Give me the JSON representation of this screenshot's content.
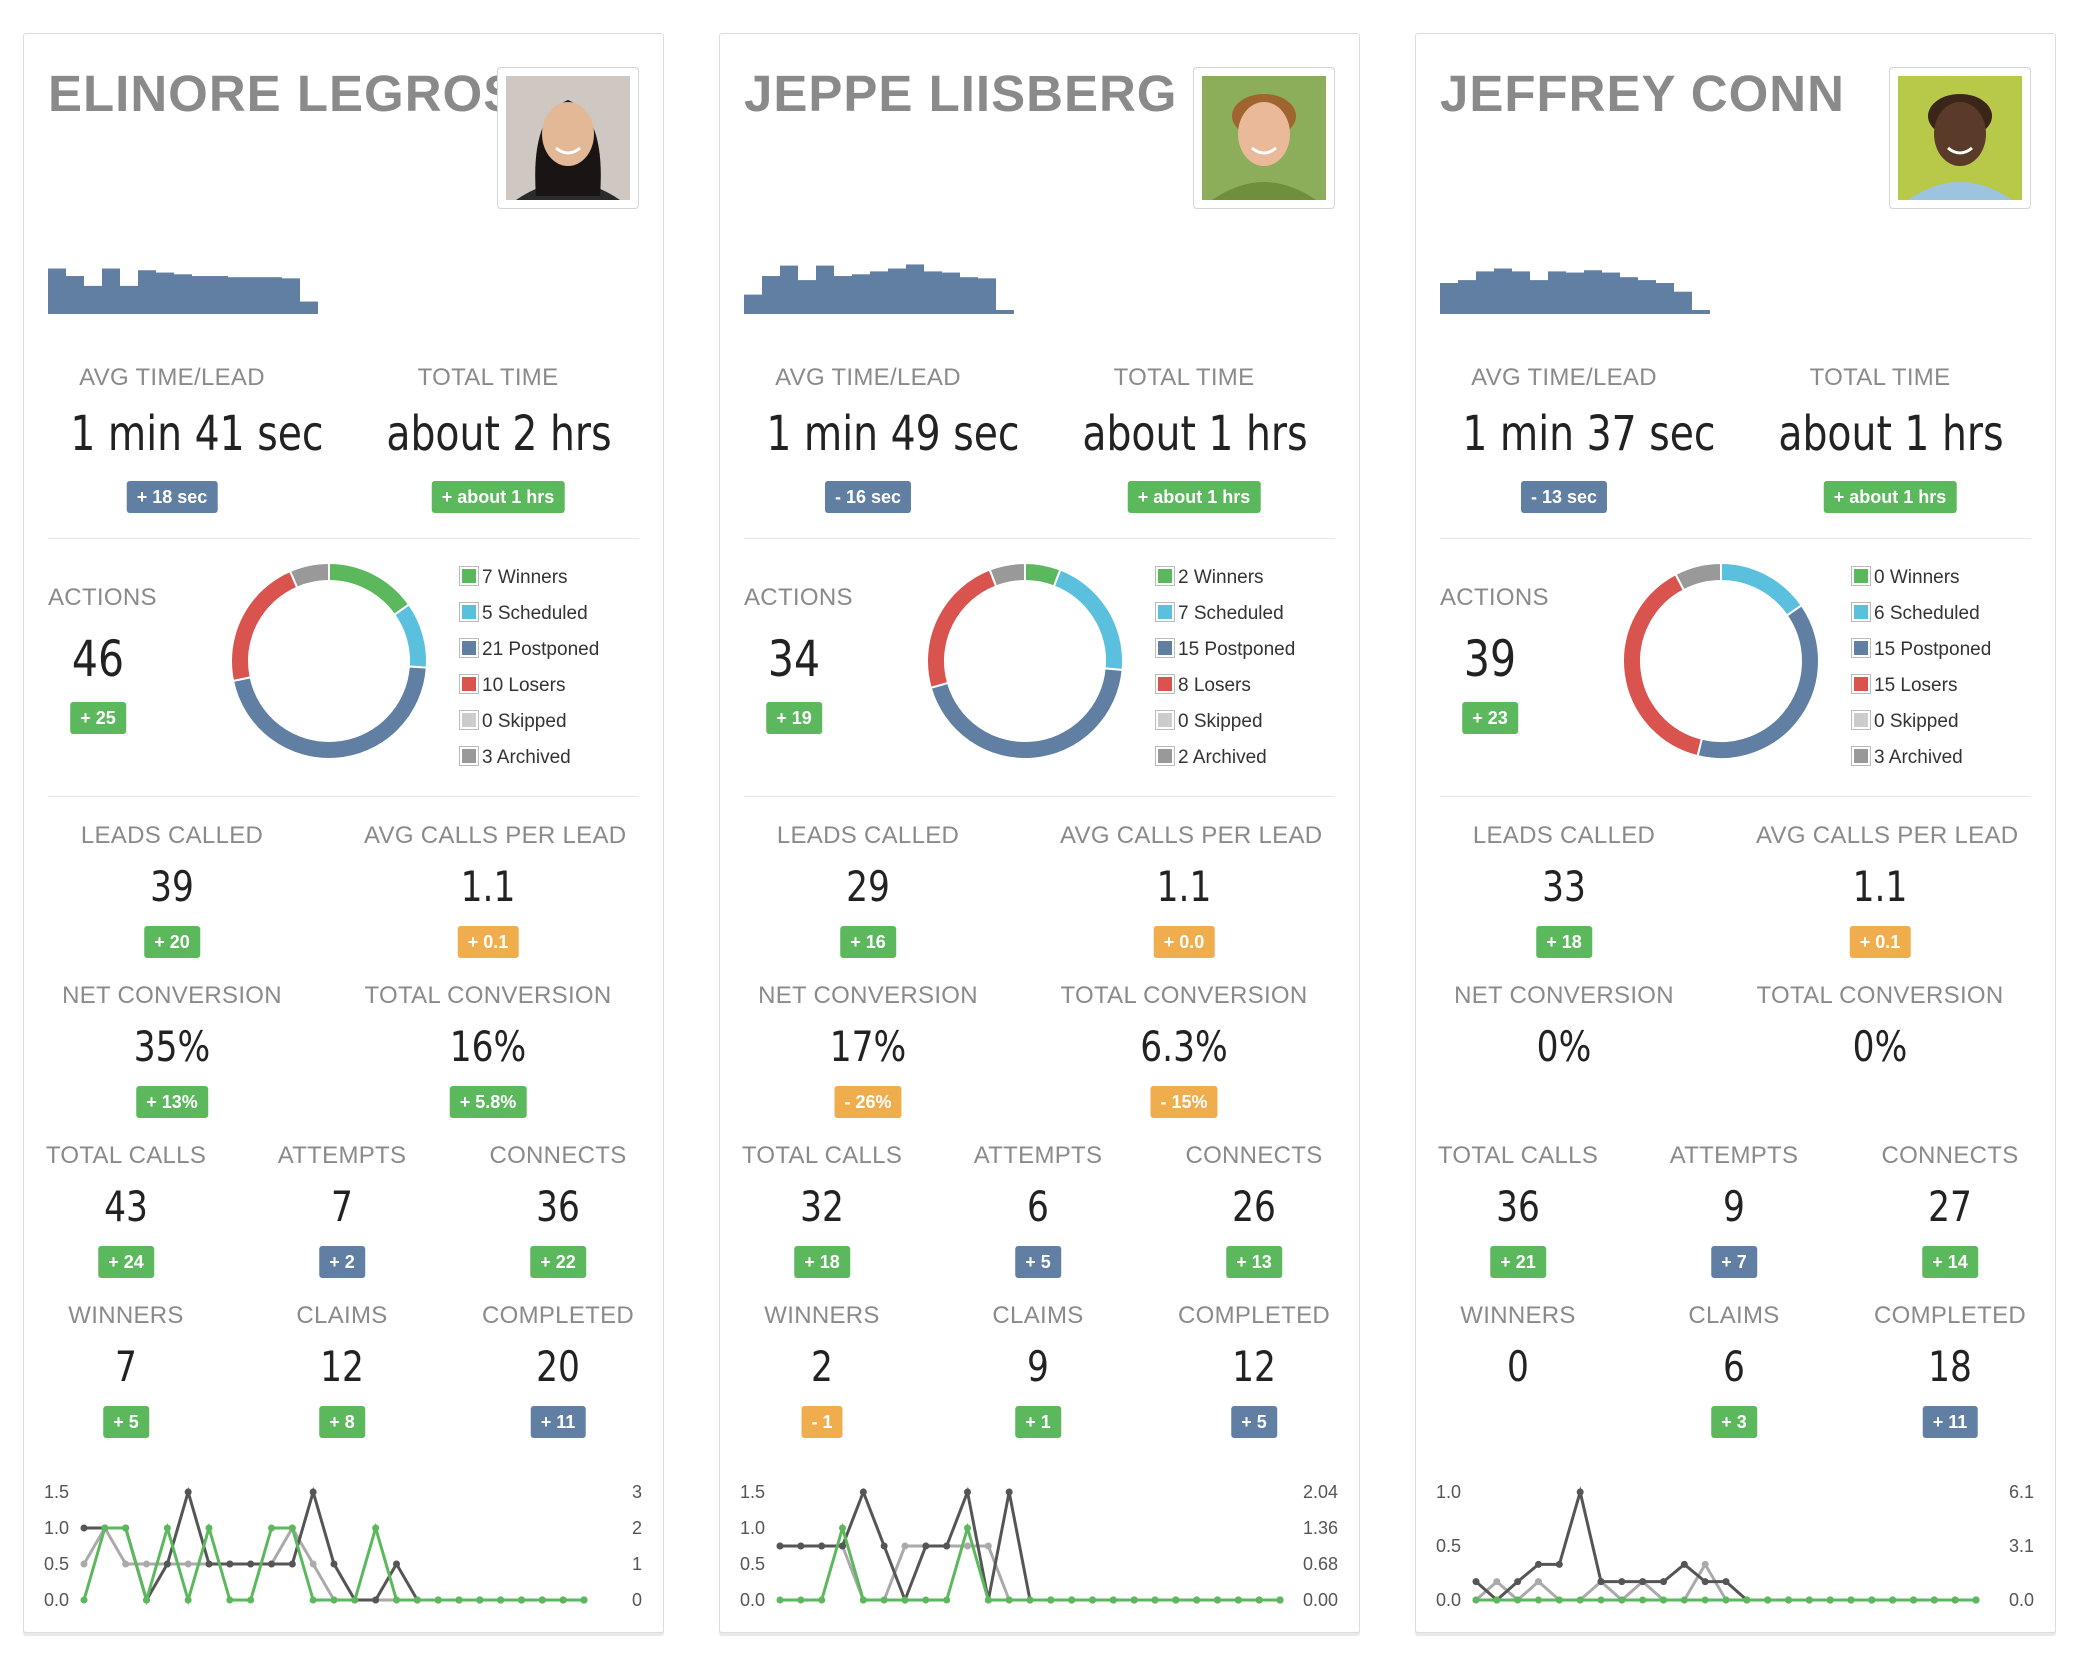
{
  "colors": {
    "winners": "#5cb85c",
    "scheduled": "#5bc0de",
    "postponed": "#607fa3",
    "losers": "#d9534f",
    "skipped": "#cccccc",
    "archived": "#999999",
    "sparkbar": "#607fa3"
  },
  "labels": {
    "avg_time": "AVG TIME/LEAD",
    "total_time": "TOTAL TIME",
    "actions": "ACTIONS",
    "leads_called": "LEADS CALLED",
    "avg_calls": "AVG CALLS PER LEAD",
    "net_conv": "NET CONVERSION",
    "total_conv": "TOTAL CONVERSION",
    "total_calls": "TOTAL CALLS",
    "attempts": "ATTEMPTS",
    "connects": "CONNECTS",
    "winners": "WINNERS",
    "claims": "CLAIMS",
    "completed": "COMPLETED"
  },
  "cards": [
    {
      "name": "ELINORE LEGROS",
      "avatar": "avatar-photo-woman",
      "spark": [
        0.75,
        0.62,
        0.45,
        0.75,
        0.45,
        0.72,
        0.68,
        0.65,
        0.62,
        0.62,
        0.6,
        0.6,
        0.6,
        0.58,
        0.18
      ],
      "avg_time": {
        "value": "1 min 41 sec",
        "delta": "+ 18 sec",
        "tone": "blue"
      },
      "total_time": {
        "value": "about 2 hrs",
        "delta": "+ about 1 hrs",
        "tone": "green"
      },
      "actions": {
        "value": "46",
        "delta": "+ 25",
        "tone": "green"
      },
      "legend": [
        "7 Winners",
        "5 Scheduled",
        "21 Postponed",
        "10 Losers",
        "0 Skipped",
        "3 Archived"
      ],
      "donut": [
        7,
        5,
        21,
        10,
        0,
        3
      ],
      "leads_called": {
        "value": "39",
        "delta": "+ 20",
        "tone": "green"
      },
      "avg_calls": {
        "value": "1.1",
        "delta": "+ 0.1",
        "tone": "orange"
      },
      "net_conv": {
        "value": "35%",
        "delta": "+ 13%",
        "tone": "green"
      },
      "total_conv": {
        "value": "16%",
        "delta": "+ 5.8%",
        "tone": "green"
      },
      "total_calls": {
        "value": "43",
        "delta": "+ 24",
        "tone": "green"
      },
      "attempts": {
        "value": "7",
        "delta": "+ 2",
        "tone": "blue"
      },
      "connects": {
        "value": "36",
        "delta": "+ 22",
        "tone": "green"
      },
      "winners": {
        "value": "7",
        "delta": "+ 5",
        "tone": "green"
      },
      "claims": {
        "value": "12",
        "delta": "+ 8",
        "tone": "green"
      },
      "completed": {
        "value": "20",
        "delta": "+ 11",
        "tone": "blue"
      },
      "chart_data": {
        "type": "line",
        "left_ticks": [
          "1.5",
          "1.0",
          "0.5",
          "0.0"
        ],
        "right_ticks": [
          "3",
          "2",
          "1",
          "0"
        ],
        "left_range": [
          0,
          1.5
        ],
        "series": [
          {
            "color": "#5cb85c",
            "values": [
              0,
              1,
              1,
              0,
              1,
              0,
              1,
              0,
              0,
              1,
              1,
              0,
              0,
              0,
              1,
              0,
              0,
              0,
              0,
              0,
              0,
              0,
              0,
              0,
              0
            ]
          },
          {
            "color": "#555555",
            "values": [
              1,
              1,
              1,
              0,
              0.5,
              1.5,
              0.5,
              0.5,
              0.5,
              0.5,
              0.5,
              1.5,
              0.5,
              0,
              0,
              0.5,
              0,
              0,
              0,
              0,
              0,
              0,
              0,
              0,
              0
            ]
          },
          {
            "color": "#aaaaaa",
            "values": [
              0.5,
              1,
              0.5,
              0.5,
              0.5,
              0.5,
              0.5,
              0.5,
              0.5,
              0.5,
              1,
              0.5,
              0,
              0,
              0,
              0,
              0,
              0,
              0,
              0,
              0,
              0,
              0,
              0,
              0
            ]
          }
        ]
      }
    },
    {
      "name": "JEPPE LIISBERG",
      "avatar": "avatar-photo-boy",
      "spark": [
        0.3,
        0.62,
        0.8,
        0.55,
        0.8,
        0.62,
        0.65,
        0.7,
        0.75,
        0.82,
        0.7,
        0.68,
        0.6,
        0.58,
        0.0
      ],
      "avg_time": {
        "value": "1 min 49 sec",
        "delta": "- 16 sec",
        "tone": "blue"
      },
      "total_time": {
        "value": "about 1 hrs",
        "delta": "+ about 1 hrs",
        "tone": "green"
      },
      "actions": {
        "value": "34",
        "delta": "+ 19",
        "tone": "green"
      },
      "legend": [
        "2 Winners",
        "7 Scheduled",
        "15 Postponed",
        "8 Losers",
        "0 Skipped",
        "2 Archived"
      ],
      "donut": [
        2,
        7,
        15,
        8,
        0,
        2
      ],
      "leads_called": {
        "value": "29",
        "delta": "+ 16",
        "tone": "green"
      },
      "avg_calls": {
        "value": "1.1",
        "delta": "+ 0.0",
        "tone": "orange"
      },
      "net_conv": {
        "value": "17%",
        "delta": "- 26%",
        "tone": "orange"
      },
      "total_conv": {
        "value": "6.3%",
        "delta": "- 15%",
        "tone": "orange"
      },
      "total_calls": {
        "value": "32",
        "delta": "+ 18",
        "tone": "green"
      },
      "attempts": {
        "value": "6",
        "delta": "+ 5",
        "tone": "blue"
      },
      "connects": {
        "value": "26",
        "delta": "+ 13",
        "tone": "green"
      },
      "winners": {
        "value": "2",
        "delta": "- 1",
        "tone": "orange"
      },
      "claims": {
        "value": "9",
        "delta": "+ 1",
        "tone": "green"
      },
      "completed": {
        "value": "12",
        "delta": "+ 5",
        "tone": "blue"
      },
      "chart_data": {
        "type": "line",
        "left_ticks": [
          "1.5",
          "1.0",
          "0.5",
          "0.0"
        ],
        "right_ticks": [
          "2.04",
          "1.36",
          "0.68",
          "0.00"
        ],
        "left_range": [
          0,
          1.5
        ],
        "series": [
          {
            "color": "#5cb85c",
            "values": [
              0,
              0,
              0,
              1,
              0,
              0,
              0,
              0,
              0,
              1,
              0,
              0,
              0,
              0,
              0,
              0,
              0,
              0,
              0,
              0,
              0,
              0,
              0,
              0,
              0
            ]
          },
          {
            "color": "#555555",
            "values": [
              0.75,
              0.75,
              0.75,
              0.75,
              1.5,
              0.75,
              0,
              0.75,
              0.75,
              1.5,
              0,
              1.5,
              0,
              0,
              0,
              0,
              0,
              0,
              0,
              0,
              0,
              0,
              0,
              0,
              0
            ]
          },
          {
            "color": "#aaaaaa",
            "values": [
              0.75,
              0.75,
              0.75,
              0.75,
              0,
              0,
              0.75,
              0.75,
              0.75,
              0.75,
              0.75,
              0,
              0,
              0,
              0,
              0,
              0,
              0,
              0,
              0,
              0,
              0,
              0,
              0,
              0
            ]
          }
        ]
      }
    },
    {
      "name": "JEFFREY CONN",
      "avatar": "avatar-photo-man",
      "spark": [
        0.5,
        0.55,
        0.7,
        0.75,
        0.7,
        0.55,
        0.7,
        0.68,
        0.72,
        0.68,
        0.6,
        0.55,
        0.5,
        0.35,
        0.0
      ],
      "avg_time": {
        "value": "1 min 37 sec",
        "delta": "- 13 sec",
        "tone": "blue"
      },
      "total_time": {
        "value": "about 1 hrs",
        "delta": "+ about 1 hrs",
        "tone": "green"
      },
      "actions": {
        "value": "39",
        "delta": "+ 23",
        "tone": "green"
      },
      "legend": [
        "0 Winners",
        "6 Scheduled",
        "15 Postponed",
        "15 Losers",
        "0 Skipped",
        "3 Archived"
      ],
      "donut": [
        0,
        6,
        15,
        15,
        0,
        3
      ],
      "leads_called": {
        "value": "33",
        "delta": "+ 18",
        "tone": "green"
      },
      "avg_calls": {
        "value": "1.1",
        "delta": "+ 0.1",
        "tone": "orange"
      },
      "net_conv": {
        "value": "0%",
        "delta": "",
        "tone": "green"
      },
      "total_conv": {
        "value": "0%",
        "delta": "",
        "tone": "green"
      },
      "total_calls": {
        "value": "36",
        "delta": "+ 21",
        "tone": "green"
      },
      "attempts": {
        "value": "9",
        "delta": "+ 7",
        "tone": "blue"
      },
      "connects": {
        "value": "27",
        "delta": "+ 14",
        "tone": "green"
      },
      "winners": {
        "value": "0",
        "delta": "",
        "tone": "green"
      },
      "claims": {
        "value": "6",
        "delta": "+ 3",
        "tone": "green"
      },
      "completed": {
        "value": "18",
        "delta": "+ 11",
        "tone": "blue"
      },
      "chart_data": {
        "type": "line",
        "left_ticks": [
          "1.0",
          "0.5",
          "0.0"
        ],
        "right_ticks": [
          "6.1",
          "3.1",
          "0.0"
        ],
        "left_range": [
          0,
          1.0
        ],
        "series": [
          {
            "color": "#5cb85c",
            "values": [
              0,
              0,
              0,
              0,
              0,
              0,
              0,
              0,
              0,
              0,
              0,
              0,
              0,
              0,
              0,
              0,
              0,
              0,
              0,
              0,
              0,
              0,
              0,
              0,
              0
            ]
          },
          {
            "color": "#555555",
            "values": [
              0.17,
              0,
              0.17,
              0.33,
              0.33,
              1.0,
              0.17,
              0.17,
              0.17,
              0.17,
              0.33,
              0.17,
              0.17,
              0,
              0,
              0,
              0,
              0,
              0,
              0,
              0,
              0,
              0,
              0,
              0
            ]
          },
          {
            "color": "#aaaaaa",
            "values": [
              0,
              0.17,
              0,
              0.17,
              0,
              0,
              0.17,
              0,
              0.17,
              0,
              0,
              0.33,
              0,
              0,
              0,
              0,
              0,
              0,
              0,
              0,
              0,
              0,
              0,
              0,
              0
            ]
          }
        ]
      }
    }
  ]
}
